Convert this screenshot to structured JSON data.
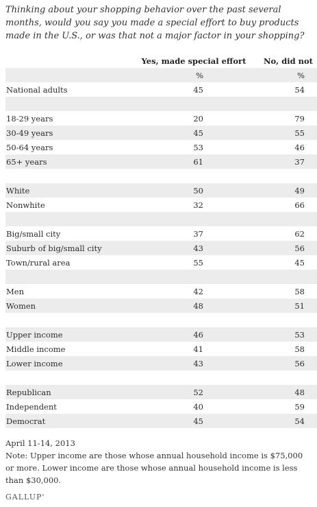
{
  "question": "Thinking about your shopping behavior over the past several months, would you say you made a special effort to buy products made in the U.S., or was that not a major factor in your shopping?",
  "columns": {
    "yes": "Yes, made special effort",
    "no": "No, did not",
    "unit": "%"
  },
  "rows": [
    {
      "label": "National adults",
      "yes": "45",
      "no": "54",
      "shade": false
    },
    {
      "label": "",
      "yes": "",
      "no": "",
      "shade": true
    },
    {
      "label": "18-29 years",
      "yes": "20",
      "no": "79",
      "shade": false
    },
    {
      "label": "30-49 years",
      "yes": "45",
      "no": "55",
      "shade": true
    },
    {
      "label": "50-64 years",
      "yes": "53",
      "no": "46",
      "shade": false
    },
    {
      "label": "65+ years",
      "yes": "61",
      "no": "37",
      "shade": true
    },
    {
      "label": "",
      "yes": "",
      "no": "",
      "shade": false
    },
    {
      "label": "White",
      "yes": "50",
      "no": "49",
      "shade": true
    },
    {
      "label": "Nonwhite",
      "yes": "32",
      "no": "66",
      "shade": false
    },
    {
      "label": "",
      "yes": "",
      "no": "",
      "shade": true
    },
    {
      "label": "Big/small city",
      "yes": "37",
      "no": "62",
      "shade": false
    },
    {
      "label": "Suburb of big/small city",
      "yes": "43",
      "no": "56",
      "shade": true
    },
    {
      "label": "Town/rural area",
      "yes": "55",
      "no": "45",
      "shade": false
    },
    {
      "label": "",
      "yes": "",
      "no": "",
      "shade": true
    },
    {
      "label": "Men",
      "yes": "42",
      "no": "58",
      "shade": false
    },
    {
      "label": "Women",
      "yes": "48",
      "no": "51",
      "shade": true
    },
    {
      "label": "",
      "yes": "",
      "no": "",
      "shade": false
    },
    {
      "label": "Upper income",
      "yes": "46",
      "no": "53",
      "shade": true
    },
    {
      "label": "Middle income",
      "yes": "41",
      "no": "58",
      "shade": false
    },
    {
      "label": "Lower income",
      "yes": "43",
      "no": "56",
      "shade": true
    },
    {
      "label": "",
      "yes": "",
      "no": "",
      "shade": false
    },
    {
      "label": "Republican",
      "yes": "52",
      "no": "48",
      "shade": true
    },
    {
      "label": "Independent",
      "yes": "40",
      "no": "59",
      "shade": false
    },
    {
      "label": "Democrat",
      "yes": "45",
      "no": "54",
      "shade": true
    }
  ],
  "footer": {
    "date": "April 11-14, 2013",
    "note": "Note: Upper income are those whose annual household income is $75,000 or more. Lower income are those whose annual household income is less than $30,000."
  },
  "logo": "GALLUP'"
}
